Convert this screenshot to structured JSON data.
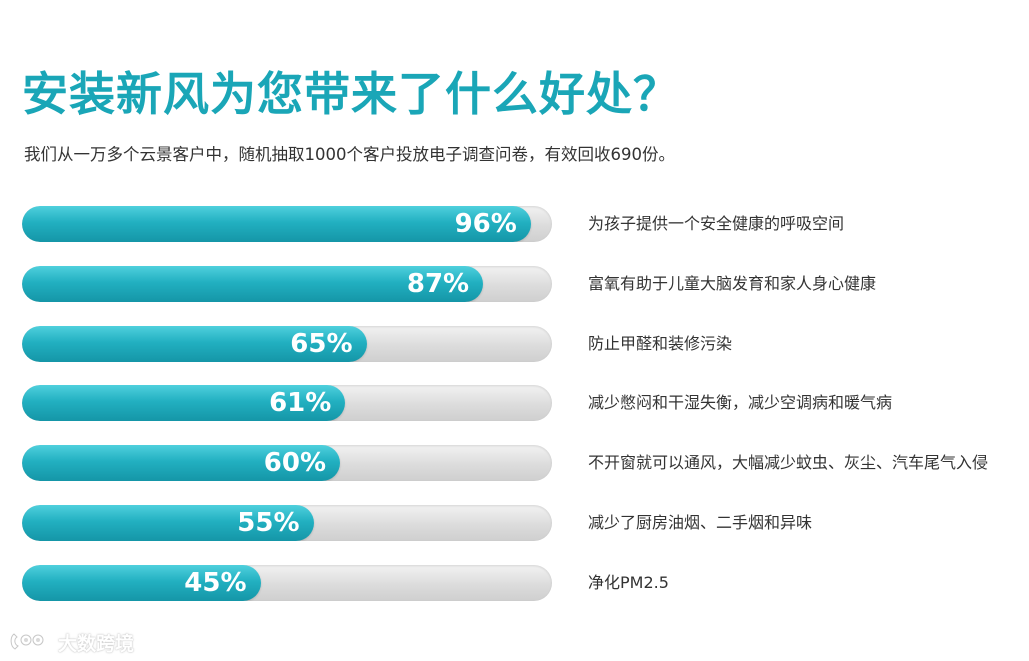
{
  "title": "安装新风为您带来了什么好处？",
  "subtitle": "我们从一万多个云景客户中，随机抽取1000个客户投放电子调查问卷，有效回收690份。",
  "watermark": "大数跨境",
  "colors": {
    "accent": "#1aa6b7",
    "bar_fill": "#22b0c1",
    "bar_track": "#dcdcdc",
    "text": "#333333"
  },
  "chart_data": {
    "type": "bar",
    "orientation": "horizontal",
    "title": "安装新风为您带来了什么好处？",
    "subtitle": "我们从一万多个云景客户中，随机抽取1000个客户投放电子调查问卷，有效回收690份。",
    "xlim": [
      0,
      100
    ],
    "unit": "%",
    "grid": false,
    "categories": [
      "为孩子提供一个安全健康的呼吸空间",
      "富氧有助于儿童大脑发育和家人身心健康",
      "防止甲醛和装修污染",
      "减少憋闷和干湿失衡，减少空调病和暖气病",
      "不开窗就可以通风，大幅减少蚊虫、灰尘、汽车尾气入侵",
      "减少了厨房油烟、二手烟和异味",
      "净化PM2.5"
    ],
    "values": [
      96,
      87,
      65,
      61,
      60,
      55,
      45
    ],
    "labels": [
      "96%",
      "87%",
      "65%",
      "61%",
      "60%",
      "55%",
      "45%"
    ]
  }
}
